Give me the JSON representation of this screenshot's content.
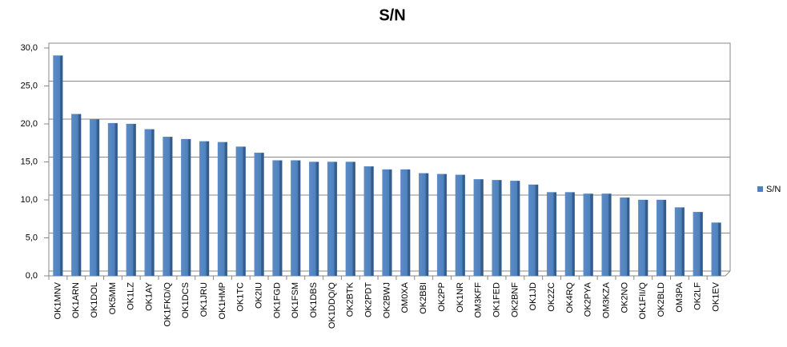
{
  "chart_data": {
    "type": "bar",
    "title": "S/N",
    "categories": [
      "OK1MNV",
      "OK1ARN",
      "OK1DOL",
      "OK5MM",
      "OK1LZ",
      "OK1AY",
      "OK1FKD/Q",
      "OK1DCS",
      "OK1JRU",
      "OK1HMP",
      "OK1TC",
      "OK2IU",
      "OK1FGD",
      "OK1FSM",
      "OK1DBS",
      "OK1DDQ/Q",
      "OK2BTK",
      "OK2PDT",
      "OK2BWJ",
      "OM0XA",
      "OK2BBI",
      "OK2PP",
      "OK1NR",
      "OM3KFF",
      "OK1FED",
      "OK2BNF",
      "OK1JD",
      "OK2ZC",
      "OK4RQ",
      "OK2PYA",
      "OM3KZA",
      "OK2NO",
      "OK1FII/Q",
      "OK2BLD",
      "OM3PA",
      "OK2LF",
      "OK1EV"
    ],
    "series": [
      {
        "name": "S/N",
        "color": "#4f81bd",
        "values": [
          29.0,
          21.3,
          20.6,
          20.1,
          20.0,
          19.3,
          18.3,
          18.0,
          17.7,
          17.6,
          17.0,
          16.2,
          15.2,
          15.2,
          15.0,
          15.0,
          15.0,
          14.4,
          14.0,
          14.0,
          13.5,
          13.4,
          13.3,
          12.7,
          12.6,
          12.5,
          12.0,
          11.0,
          11.0,
          10.8,
          10.8,
          10.3,
          10.0,
          10.0,
          9.0,
          8.4,
          7.0
        ]
      }
    ],
    "ylim": [
      0,
      30
    ],
    "yticks": [
      {
        "value": 0,
        "label": "0,0"
      },
      {
        "value": 5,
        "label": "5,0"
      },
      {
        "value": 10,
        "label": "10,0"
      },
      {
        "value": 15,
        "label": "15,0"
      },
      {
        "value": 20,
        "label": "20,0"
      },
      {
        "value": 25,
        "label": "25,0"
      },
      {
        "value": 30,
        "label": "30,0"
      }
    ],
    "grid": true,
    "legend": "right"
  }
}
